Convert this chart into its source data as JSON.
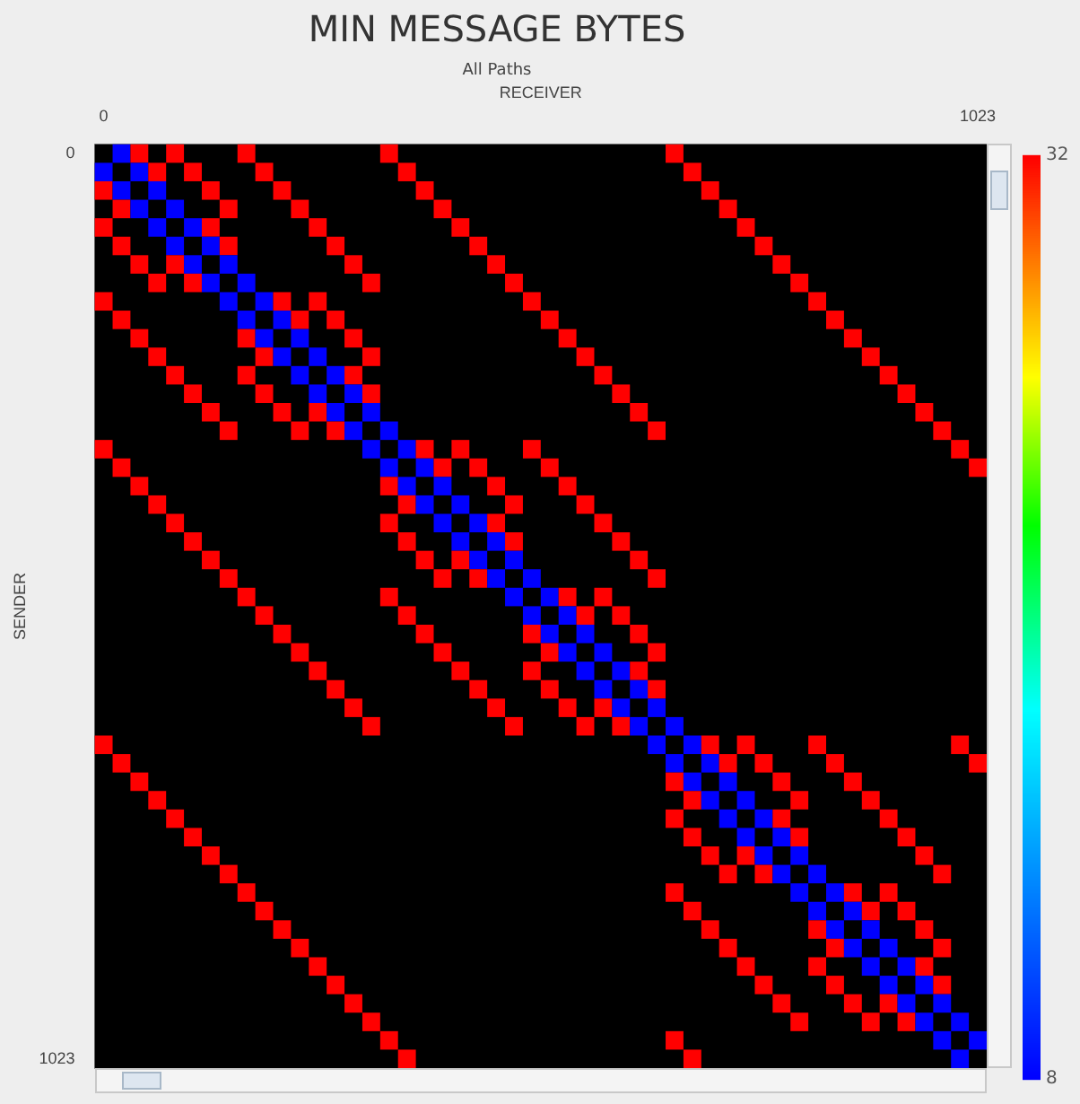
{
  "chart_data": {
    "type": "heatmap",
    "title": "MIN MESSAGE BYTES",
    "subtitle": "All Paths",
    "xlabel": "RECEIVER",
    "ylabel": "SENDER",
    "categories": [
      "0",
      null,
      null,
      null,
      null,
      null,
      null,
      null,
      null,
      null,
      null,
      null,
      null,
      null,
      null,
      null,
      null,
      null,
      null,
      null,
      null,
      null,
      null,
      null,
      null,
      null,
      null,
      null,
      null,
      null,
      null,
      null,
      null,
      null,
      null,
      null,
      null,
      null,
      null,
      null,
      null,
      null,
      null,
      null,
      null,
      null,
      null,
      null,
      null,
      "1023"
    ],
    "y_categories": [
      "0",
      null,
      null,
      null,
      null,
      null,
      null,
      null,
      null,
      null,
      null,
      null,
      null,
      null,
      null,
      null,
      null,
      null,
      null,
      null,
      null,
      null,
      null,
      null,
      null,
      null,
      null,
      null,
      null,
      null,
      null,
      null,
      null,
      null,
      null,
      null,
      null,
      null,
      null,
      null,
      null,
      null,
      null,
      null,
      null,
      null,
      null,
      null,
      null,
      "1023"
    ],
    "clim": [
      8,
      32
    ],
    "cticks": [
      8,
      32
    ],
    "cells": [
      [
        null,
        8,
        32,
        null,
        32,
        null,
        null,
        null,
        32,
        null,
        null,
        null,
        null,
        null,
        null,
        null,
        32,
        null,
        null,
        null,
        null,
        null,
        null,
        null,
        null,
        null,
        null,
        null,
        null,
        null,
        null,
        null,
        32,
        null,
        null,
        null,
        null,
        null,
        null,
        null,
        null,
        null,
        null,
        null,
        null,
        null,
        null,
        null,
        null,
        null
      ],
      [
        8,
        null,
        8,
        32,
        null,
        32,
        null,
        null,
        null,
        32,
        null,
        null,
        null,
        null,
        null,
        null,
        null,
        32,
        null,
        null,
        null,
        null,
        null,
        null,
        null,
        null,
        null,
        null,
        null,
        null,
        null,
        null,
        null,
        32,
        null,
        null,
        null,
        null,
        null,
        null,
        null,
        null,
        null,
        null,
        null,
        null,
        null,
        null,
        null,
        null
      ],
      [
        32,
        8,
        null,
        8,
        null,
        null,
        32,
        null,
        null,
        null,
        32,
        null,
        null,
        null,
        null,
        null,
        null,
        null,
        32,
        null,
        null,
        null,
        null,
        null,
        null,
        null,
        null,
        null,
        null,
        null,
        null,
        null,
        null,
        null,
        32,
        null,
        null,
        null,
        null,
        null,
        null,
        null,
        null,
        null,
        null,
        null,
        null,
        null,
        null,
        null
      ],
      [
        null,
        32,
        8,
        null,
        8,
        null,
        null,
        32,
        null,
        null,
        null,
        32,
        null,
        null,
        null,
        null,
        null,
        null,
        null,
        32,
        null,
        null,
        null,
        null,
        null,
        null,
        null,
        null,
        null,
        null,
        null,
        null,
        null,
        null,
        null,
        32,
        null,
        null,
        null,
        null,
        null,
        null,
        null,
        null,
        null,
        null,
        null,
        null,
        null,
        null
      ],
      [
        32,
        null,
        null,
        8,
        null,
        8,
        32,
        null,
        null,
        null,
        null,
        null,
        32,
        null,
        null,
        null,
        null,
        null,
        null,
        null,
        32,
        null,
        null,
        null,
        null,
        null,
        null,
        null,
        null,
        null,
        null,
        null,
        null,
        null,
        null,
        null,
        32,
        null,
        null,
        null,
        null,
        null,
        null,
        null,
        null,
        null,
        null,
        null,
        null,
        null
      ],
      [
        null,
        32,
        null,
        null,
        8,
        null,
        8,
        32,
        null,
        null,
        null,
        null,
        null,
        32,
        null,
        null,
        null,
        null,
        null,
        null,
        null,
        32,
        null,
        null,
        null,
        null,
        null,
        null,
        null,
        null,
        null,
        null,
        null,
        null,
        null,
        null,
        null,
        32,
        null,
        null,
        null,
        null,
        null,
        null,
        null,
        null,
        null,
        null,
        null,
        null
      ],
      [
        null,
        null,
        32,
        null,
        32,
        8,
        null,
        8,
        null,
        null,
        null,
        null,
        null,
        null,
        32,
        null,
        null,
        null,
        null,
        null,
        null,
        null,
        32,
        null,
        null,
        null,
        null,
        null,
        null,
        null,
        null,
        null,
        null,
        null,
        null,
        null,
        null,
        null,
        32,
        null,
        null,
        null,
        null,
        null,
        null,
        null,
        null,
        null,
        null,
        null
      ],
      [
        null,
        null,
        null,
        32,
        null,
        32,
        8,
        null,
        8,
        null,
        null,
        null,
        null,
        null,
        null,
        32,
        null,
        null,
        null,
        null,
        null,
        null,
        null,
        32,
        null,
        null,
        null,
        null,
        null,
        null,
        null,
        null,
        null,
        null,
        null,
        null,
        null,
        null,
        null,
        32,
        null,
        null,
        null,
        null,
        null,
        null,
        null,
        null,
        null,
        null
      ],
      [
        32,
        null,
        null,
        null,
        null,
        null,
        null,
        8,
        null,
        8,
        32,
        null,
        32,
        null,
        null,
        null,
        null,
        null,
        null,
        null,
        null,
        null,
        null,
        null,
        32,
        null,
        null,
        null,
        null,
        null,
        null,
        null,
        null,
        null,
        null,
        null,
        null,
        null,
        null,
        null,
        32,
        null,
        null,
        null,
        null,
        null,
        null,
        null,
        null,
        null
      ],
      [
        null,
        32,
        null,
        null,
        null,
        null,
        null,
        null,
        8,
        null,
        8,
        32,
        null,
        32,
        null,
        null,
        null,
        null,
        null,
        null,
        null,
        null,
        null,
        null,
        null,
        32,
        null,
        null,
        null,
        null,
        null,
        null,
        null,
        null,
        null,
        null,
        null,
        null,
        null,
        null,
        null,
        32,
        null,
        null,
        null,
        null,
        null,
        null,
        null,
        null
      ],
      [
        null,
        null,
        32,
        null,
        null,
        null,
        null,
        null,
        32,
        8,
        null,
        8,
        null,
        null,
        32,
        null,
        null,
        null,
        null,
        null,
        null,
        null,
        null,
        null,
        null,
        null,
        32,
        null,
        null,
        null,
        null,
        null,
        null,
        null,
        null,
        null,
        null,
        null,
        null,
        null,
        null,
        null,
        32,
        null,
        null,
        null,
        null,
        null,
        null,
        null
      ],
      [
        null,
        null,
        null,
        32,
        null,
        null,
        null,
        null,
        null,
        32,
        8,
        null,
        8,
        null,
        null,
        32,
        null,
        null,
        null,
        null,
        null,
        null,
        null,
        null,
        null,
        null,
        null,
        32,
        null,
        null,
        null,
        null,
        null,
        null,
        null,
        null,
        null,
        null,
        null,
        null,
        null,
        null,
        null,
        32,
        null,
        null,
        null,
        null,
        null,
        null
      ],
      [
        null,
        null,
        null,
        null,
        32,
        null,
        null,
        null,
        32,
        null,
        null,
        8,
        null,
        8,
        32,
        null,
        null,
        null,
        null,
        null,
        null,
        null,
        null,
        null,
        null,
        null,
        null,
        null,
        32,
        null,
        null,
        null,
        null,
        null,
        null,
        null,
        null,
        null,
        null,
        null,
        null,
        null,
        null,
        null,
        32,
        null,
        null,
        null,
        null,
        null
      ],
      [
        null,
        null,
        null,
        null,
        null,
        32,
        null,
        null,
        null,
        32,
        null,
        null,
        8,
        null,
        8,
        32,
        null,
        null,
        null,
        null,
        null,
        null,
        null,
        null,
        null,
        null,
        null,
        null,
        null,
        32,
        null,
        null,
        null,
        null,
        null,
        null,
        null,
        null,
        null,
        null,
        null,
        null,
        null,
        null,
        null,
        32,
        null,
        null,
        null,
        null
      ],
      [
        null,
        null,
        null,
        null,
        null,
        null,
        32,
        null,
        null,
        null,
        32,
        null,
        32,
        8,
        null,
        8,
        null,
        null,
        null,
        null,
        null,
        null,
        null,
        null,
        null,
        null,
        null,
        null,
        null,
        null,
        32,
        null,
        null,
        null,
        null,
        null,
        null,
        null,
        null,
        null,
        null,
        null,
        null,
        null,
        null,
        null,
        32,
        null,
        null,
        null
      ],
      [
        null,
        null,
        null,
        null,
        null,
        null,
        null,
        32,
        null,
        null,
        null,
        32,
        null,
        32,
        8,
        null,
        8,
        null,
        null,
        null,
        null,
        null,
        null,
        null,
        null,
        null,
        null,
        null,
        null,
        null,
        null,
        32,
        null,
        null,
        null,
        null,
        null,
        null,
        null,
        null,
        null,
        null,
        null,
        null,
        null,
        null,
        null,
        32,
        null,
        null
      ],
      [
        32,
        null,
        null,
        null,
        null,
        null,
        null,
        null,
        null,
        null,
        null,
        null,
        null,
        null,
        null,
        8,
        null,
        8,
        32,
        null,
        32,
        null,
        null,
        null,
        32,
        null,
        null,
        null,
        null,
        null,
        null,
        null,
        null,
        null,
        null,
        null,
        null,
        null,
        null,
        null,
        null,
        null,
        null,
        null,
        null,
        null,
        null,
        null,
        32,
        null
      ],
      [
        null,
        32,
        null,
        null,
        null,
        null,
        null,
        null,
        null,
        null,
        null,
        null,
        null,
        null,
        null,
        null,
        8,
        null,
        8,
        32,
        null,
        32,
        null,
        null,
        null,
        32,
        null,
        null,
        null,
        null,
        null,
        null,
        null,
        null,
        null,
        null,
        null,
        null,
        null,
        null,
        null,
        null,
        null,
        null,
        null,
        null,
        null,
        null,
        null,
        32
      ],
      [
        null,
        null,
        32,
        null,
        null,
        null,
        null,
        null,
        null,
        null,
        null,
        null,
        null,
        null,
        null,
        null,
        32,
        8,
        null,
        8,
        null,
        null,
        32,
        null,
        null,
        null,
        32,
        null,
        null,
        null,
        null,
        null,
        null,
        null,
        null,
        null,
        null,
        null,
        null,
        null,
        null,
        null,
        null,
        null,
        null,
        null,
        null,
        null,
        null,
        null
      ],
      [
        null,
        null,
        null,
        32,
        null,
        null,
        null,
        null,
        null,
        null,
        null,
        null,
        null,
        null,
        null,
        null,
        null,
        32,
        8,
        null,
        8,
        null,
        null,
        32,
        null,
        null,
        null,
        32,
        null,
        null,
        null,
        null,
        null,
        null,
        null,
        null,
        null,
        null,
        null,
        null,
        null,
        null,
        null,
        null,
        null,
        null,
        null,
        null,
        null,
        null
      ],
      [
        null,
        null,
        null,
        null,
        32,
        null,
        null,
        null,
        null,
        null,
        null,
        null,
        null,
        null,
        null,
        null,
        32,
        null,
        null,
        8,
        null,
        8,
        32,
        null,
        null,
        null,
        null,
        null,
        32,
        null,
        null,
        null,
        null,
        null,
        null,
        null,
        null,
        null,
        null,
        null,
        null,
        null,
        null,
        null,
        null,
        null,
        null,
        null,
        null,
        null
      ],
      [
        null,
        null,
        null,
        null,
        null,
        32,
        null,
        null,
        null,
        null,
        null,
        null,
        null,
        null,
        null,
        null,
        null,
        32,
        null,
        null,
        8,
        null,
        8,
        32,
        null,
        null,
        null,
        null,
        null,
        32,
        null,
        null,
        null,
        null,
        null,
        null,
        null,
        null,
        null,
        null,
        null,
        null,
        null,
        null,
        null,
        null,
        null,
        null,
        null,
        null
      ],
      [
        null,
        null,
        null,
        null,
        null,
        null,
        32,
        null,
        null,
        null,
        null,
        null,
        null,
        null,
        null,
        null,
        null,
        null,
        32,
        null,
        32,
        8,
        null,
        8,
        null,
        null,
        null,
        null,
        null,
        null,
        32,
        null,
        null,
        null,
        null,
        null,
        null,
        null,
        null,
        null,
        null,
        null,
        null,
        null,
        null,
        null,
        null,
        null,
        null,
        null
      ],
      [
        null,
        null,
        null,
        null,
        null,
        null,
        null,
        32,
        null,
        null,
        null,
        null,
        null,
        null,
        null,
        null,
        null,
        null,
        null,
        32,
        null,
        32,
        8,
        null,
        8,
        null,
        null,
        null,
        null,
        null,
        null,
        32,
        null,
        null,
        null,
        null,
        null,
        null,
        null,
        null,
        null,
        null,
        null,
        null,
        null,
        null,
        null,
        null,
        null,
        null
      ],
      [
        null,
        null,
        null,
        null,
        null,
        null,
        null,
        null,
        32,
        null,
        null,
        null,
        null,
        null,
        null,
        null,
        32,
        null,
        null,
        null,
        null,
        null,
        null,
        8,
        null,
        8,
        32,
        null,
        32,
        null,
        null,
        null,
        null,
        null,
        null,
        null,
        null,
        null,
        null,
        null,
        null,
        null,
        null,
        null,
        null,
        null,
        null,
        null,
        null,
        null
      ],
      [
        null,
        null,
        null,
        null,
        null,
        null,
        null,
        null,
        null,
        32,
        null,
        null,
        null,
        null,
        null,
        null,
        null,
        32,
        null,
        null,
        null,
        null,
        null,
        null,
        8,
        null,
        8,
        32,
        null,
        32,
        null,
        null,
        null,
        null,
        null,
        null,
        null,
        null,
        null,
        null,
        null,
        null,
        null,
        null,
        null,
        null,
        null,
        null,
        null,
        null
      ],
      [
        null,
        null,
        null,
        null,
        null,
        null,
        null,
        null,
        null,
        null,
        32,
        null,
        null,
        null,
        null,
        null,
        null,
        null,
        32,
        null,
        null,
        null,
        null,
        null,
        32,
        8,
        null,
        8,
        null,
        null,
        32,
        null,
        null,
        null,
        null,
        null,
        null,
        null,
        null,
        null,
        null,
        null,
        null,
        null,
        null,
        null,
        null,
        null,
        null,
        null
      ],
      [
        null,
        null,
        null,
        null,
        null,
        null,
        null,
        null,
        null,
        null,
        null,
        32,
        null,
        null,
        null,
        null,
        null,
        null,
        null,
        32,
        null,
        null,
        null,
        null,
        null,
        32,
        8,
        null,
        8,
        null,
        null,
        32,
        null,
        null,
        null,
        null,
        null,
        null,
        null,
        null,
        null,
        null,
        null,
        null,
        null,
        null,
        null,
        null,
        null,
        null
      ],
      [
        null,
        null,
        null,
        null,
        null,
        null,
        null,
        null,
        null,
        null,
        null,
        null,
        32,
        null,
        null,
        null,
        null,
        null,
        null,
        null,
        32,
        null,
        null,
        null,
        32,
        null,
        null,
        8,
        null,
        8,
        32,
        null,
        null,
        null,
        null,
        null,
        null,
        null,
        null,
        null,
        null,
        null,
        null,
        null,
        null,
        null,
        null,
        null,
        null,
        null
      ],
      [
        null,
        null,
        null,
        null,
        null,
        null,
        null,
        null,
        null,
        null,
        null,
        null,
        null,
        32,
        null,
        null,
        null,
        null,
        null,
        null,
        null,
        32,
        null,
        null,
        null,
        32,
        null,
        null,
        8,
        null,
        8,
        32,
        null,
        null,
        null,
        null,
        null,
        null,
        null,
        null,
        null,
        null,
        null,
        null,
        null,
        null,
        null,
        null,
        null,
        null
      ],
      [
        null,
        null,
        null,
        null,
        null,
        null,
        null,
        null,
        null,
        null,
        null,
        null,
        null,
        null,
        32,
        null,
        null,
        null,
        null,
        null,
        null,
        null,
        32,
        null,
        null,
        null,
        32,
        null,
        32,
        8,
        null,
        8,
        null,
        null,
        null,
        null,
        null,
        null,
        null,
        null,
        null,
        null,
        null,
        null,
        null,
        null,
        null,
        null,
        null,
        null
      ],
      [
        null,
        null,
        null,
        null,
        null,
        null,
        null,
        null,
        null,
        null,
        null,
        null,
        null,
        null,
        null,
        32,
        null,
        null,
        null,
        null,
        null,
        null,
        null,
        32,
        null,
        null,
        null,
        32,
        null,
        32,
        8,
        null,
        8,
        null,
        null,
        null,
        null,
        null,
        null,
        null,
        null,
        null,
        null,
        null,
        null,
        null,
        null,
        null,
        null,
        null
      ],
      [
        32,
        null,
        null,
        null,
        null,
        null,
        null,
        null,
        null,
        null,
        null,
        null,
        null,
        null,
        null,
        null,
        null,
        null,
        null,
        null,
        null,
        null,
        null,
        null,
        null,
        null,
        null,
        null,
        null,
        null,
        null,
        8,
        null,
        8,
        32,
        null,
        32,
        null,
        null,
        null,
        32,
        null,
        null,
        null,
        null,
        null,
        null,
        null,
        32,
        null
      ],
      [
        null,
        32,
        null,
        null,
        null,
        null,
        null,
        null,
        null,
        null,
        null,
        null,
        null,
        null,
        null,
        null,
        null,
        null,
        null,
        null,
        null,
        null,
        null,
        null,
        null,
        null,
        null,
        null,
        null,
        null,
        null,
        null,
        8,
        null,
        8,
        32,
        null,
        32,
        null,
        null,
        null,
        32,
        null,
        null,
        null,
        null,
        null,
        null,
        null,
        32
      ],
      [
        null,
        null,
        32,
        null,
        null,
        null,
        null,
        null,
        null,
        null,
        null,
        null,
        null,
        null,
        null,
        null,
        null,
        null,
        null,
        null,
        null,
        null,
        null,
        null,
        null,
        null,
        null,
        null,
        null,
        null,
        null,
        null,
        32,
        8,
        null,
        8,
        null,
        null,
        32,
        null,
        null,
        null,
        32,
        null,
        null,
        null,
        null,
        null,
        null,
        null
      ],
      [
        null,
        null,
        null,
        32,
        null,
        null,
        null,
        null,
        null,
        null,
        null,
        null,
        null,
        null,
        null,
        null,
        null,
        null,
        null,
        null,
        null,
        null,
        null,
        null,
        null,
        null,
        null,
        null,
        null,
        null,
        null,
        null,
        null,
        32,
        8,
        null,
        8,
        null,
        null,
        32,
        null,
        null,
        null,
        32,
        null,
        null,
        null,
        null,
        null,
        null
      ],
      [
        null,
        null,
        null,
        null,
        32,
        null,
        null,
        null,
        null,
        null,
        null,
        null,
        null,
        null,
        null,
        null,
        null,
        null,
        null,
        null,
        null,
        null,
        null,
        null,
        null,
        null,
        null,
        null,
        null,
        null,
        null,
        null,
        32,
        null,
        null,
        8,
        null,
        8,
        32,
        null,
        null,
        null,
        null,
        null,
        32,
        null,
        null,
        null,
        null,
        null
      ],
      [
        null,
        null,
        null,
        null,
        null,
        32,
        null,
        null,
        null,
        null,
        null,
        null,
        null,
        null,
        null,
        null,
        null,
        null,
        null,
        null,
        null,
        null,
        null,
        null,
        null,
        null,
        null,
        null,
        null,
        null,
        null,
        null,
        null,
        32,
        null,
        null,
        8,
        null,
        8,
        32,
        null,
        null,
        null,
        null,
        null,
        32,
        null,
        null,
        null,
        null
      ],
      [
        null,
        null,
        null,
        null,
        null,
        null,
        32,
        null,
        null,
        null,
        null,
        null,
        null,
        null,
        null,
        null,
        null,
        null,
        null,
        null,
        null,
        null,
        null,
        null,
        null,
        null,
        null,
        null,
        null,
        null,
        null,
        null,
        null,
        null,
        32,
        null,
        32,
        8,
        null,
        8,
        null,
        null,
        null,
        null,
        null,
        null,
        32,
        null,
        null,
        null
      ],
      [
        null,
        null,
        null,
        null,
        null,
        null,
        null,
        32,
        null,
        null,
        null,
        null,
        null,
        null,
        null,
        null,
        null,
        null,
        null,
        null,
        null,
        null,
        null,
        null,
        null,
        null,
        null,
        null,
        null,
        null,
        null,
        null,
        null,
        null,
        null,
        32,
        null,
        32,
        8,
        null,
        8,
        null,
        null,
        null,
        null,
        null,
        null,
        32,
        null,
        null
      ],
      [
        null,
        null,
        null,
        null,
        null,
        null,
        null,
        null,
        32,
        null,
        null,
        null,
        null,
        null,
        null,
        null,
        null,
        null,
        null,
        null,
        null,
        null,
        null,
        null,
        null,
        null,
        null,
        null,
        null,
        null,
        null,
        null,
        32,
        null,
        null,
        null,
        null,
        null,
        null,
        8,
        null,
        8,
        32,
        null,
        32,
        null,
        null,
        null,
        null,
        null
      ],
      [
        null,
        null,
        null,
        null,
        null,
        null,
        null,
        null,
        null,
        32,
        null,
        null,
        null,
        null,
        null,
        null,
        null,
        null,
        null,
        null,
        null,
        null,
        null,
        null,
        null,
        null,
        null,
        null,
        null,
        null,
        null,
        null,
        null,
        32,
        null,
        null,
        null,
        null,
        null,
        null,
        8,
        null,
        8,
        32,
        null,
        32,
        null,
        null,
        null,
        null
      ],
      [
        null,
        null,
        null,
        null,
        null,
        null,
        null,
        null,
        null,
        null,
        32,
        null,
        null,
        null,
        null,
        null,
        null,
        null,
        null,
        null,
        null,
        null,
        null,
        null,
        null,
        null,
        null,
        null,
        null,
        null,
        null,
        null,
        null,
        null,
        32,
        null,
        null,
        null,
        null,
        null,
        32,
        8,
        null,
        8,
        null,
        null,
        32,
        null,
        null,
        null
      ],
      [
        null,
        null,
        null,
        null,
        null,
        null,
        null,
        null,
        null,
        null,
        null,
        32,
        null,
        null,
        null,
        null,
        null,
        null,
        null,
        null,
        null,
        null,
        null,
        null,
        null,
        null,
        null,
        null,
        null,
        null,
        null,
        null,
        null,
        null,
        null,
        32,
        null,
        null,
        null,
        null,
        null,
        32,
        8,
        null,
        8,
        null,
        null,
        32,
        null,
        null
      ],
      [
        null,
        null,
        null,
        null,
        null,
        null,
        null,
        null,
        null,
        null,
        null,
        null,
        32,
        null,
        null,
        null,
        null,
        null,
        null,
        null,
        null,
        null,
        null,
        null,
        null,
        null,
        null,
        null,
        null,
        null,
        null,
        null,
        null,
        null,
        null,
        null,
        32,
        null,
        null,
        null,
        32,
        null,
        null,
        8,
        null,
        8,
        32,
        null,
        null,
        null
      ],
      [
        null,
        null,
        null,
        null,
        null,
        null,
        null,
        null,
        null,
        null,
        null,
        null,
        null,
        32,
        null,
        null,
        null,
        null,
        null,
        null,
        null,
        null,
        null,
        null,
        null,
        null,
        null,
        null,
        null,
        null,
        null,
        null,
        null,
        null,
        null,
        null,
        null,
        32,
        null,
        null,
        null,
        32,
        null,
        null,
        8,
        null,
        8,
        32,
        null,
        null
      ],
      [
        null,
        null,
        null,
        null,
        null,
        null,
        null,
        null,
        null,
        null,
        null,
        null,
        null,
        null,
        32,
        null,
        null,
        null,
        null,
        null,
        null,
        null,
        null,
        null,
        null,
        null,
        null,
        null,
        null,
        null,
        null,
        null,
        null,
        null,
        null,
        null,
        null,
        null,
        32,
        null,
        null,
        null,
        32,
        null,
        32,
        8,
        null,
        8,
        null,
        null
      ],
      [
        null,
        null,
        null,
        null,
        null,
        null,
        null,
        null,
        null,
        null,
        null,
        null,
        null,
        null,
        null,
        32,
        null,
        null,
        null,
        null,
        null,
        null,
        null,
        null,
        null,
        null,
        null,
        null,
        null,
        null,
        null,
        null,
        null,
        null,
        null,
        null,
        null,
        null,
        null,
        32,
        null,
        null,
        null,
        32,
        null,
        32,
        8,
        null,
        8,
        null
      ],
      [
        null,
        null,
        null,
        null,
        null,
        null,
        null,
        null,
        null,
        null,
        null,
        null,
        null,
        null,
        null,
        null,
        32,
        null,
        null,
        null,
        null,
        null,
        null,
        null,
        null,
        null,
        null,
        null,
        null,
        null,
        null,
        null,
        32,
        null,
        null,
        null,
        null,
        null,
        null,
        null,
        null,
        null,
        null,
        null,
        null,
        null,
        null,
        8,
        null,
        8
      ],
      [
        null,
        null,
        null,
        null,
        null,
        null,
        null,
        null,
        null,
        null,
        null,
        null,
        null,
        null,
        null,
        null,
        null,
        32,
        null,
        null,
        null,
        null,
        null,
        null,
        null,
        null,
        null,
        null,
        null,
        null,
        null,
        null,
        null,
        32,
        null,
        null,
        null,
        null,
        null,
        null,
        null,
        null,
        null,
        null,
        null,
        null,
        null,
        null,
        8,
        null
      ]
    ]
  }
}
